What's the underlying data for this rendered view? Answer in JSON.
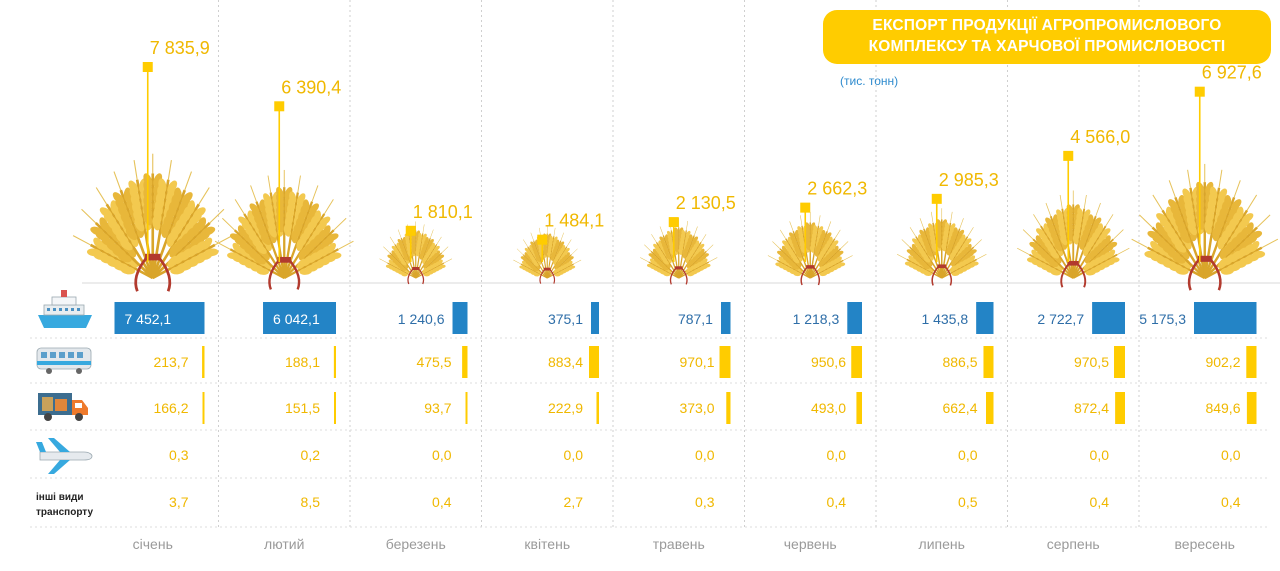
{
  "title": "ЕКСПОРТ ПРОДУКЦІЇ АГРОПРОМИСЛОВОГО КОМПЛЕКСУ ТА ХАРЧОВОЇ ПРОМИСЛОВОСТІ",
  "unit": "(тис. тонн)",
  "colors": {
    "accent": "#FFCC00",
    "sea": "#2384C6",
    "text_yellow": "#F0B800",
    "text_blue": "#2E8BCE"
  },
  "chart_data": {
    "type": "bar",
    "categories": [
      "січень",
      "лютий",
      "березень",
      "квітень",
      "травень",
      "червень",
      "липень",
      "серпень",
      "вересень"
    ],
    "totals": [
      7835.9,
      6390.4,
      1810.1,
      1484.1,
      2130.5,
      2662.3,
      2985.3,
      4566.0,
      6927.6
    ],
    "totals_labels": [
      "7 835,9",
      "6 390,4",
      "1 810,1",
      "1 484,1",
      "2 130,5",
      "2 662,3",
      "2 985,3",
      "4 566,0",
      "6 927,6"
    ],
    "series": [
      {
        "icon": "ship-icon",
        "values": [
          7452.1,
          6042.1,
          1240.6,
          375.1,
          787.1,
          1218.3,
          1435.8,
          2722.7,
          5175.3
        ],
        "labels": [
          "7 452,1",
          "6 042,1",
          "1 240,6",
          "375,1",
          "787,1",
          "1 218,3",
          "1 435,8",
          "2 722,7",
          "5 175,3"
        ]
      },
      {
        "icon": "train-icon",
        "values": [
          213.7,
          188.1,
          475.5,
          883.4,
          970.1,
          950.6,
          886.5,
          970.5,
          902.2
        ],
        "labels": [
          "213,7",
          "188,1",
          "475,5",
          "883,4",
          "970,1",
          "950,6",
          "886,5",
          "970,5",
          "902,2"
        ]
      },
      {
        "icon": "truck-icon",
        "values": [
          166.2,
          151.5,
          93.7,
          222.9,
          373.0,
          493.0,
          662.4,
          872.4,
          849.6
        ],
        "labels": [
          "166,2",
          "151,5",
          "93,7",
          "222,9",
          "373,0",
          "493,0",
          "662,4",
          "872,4",
          "849,6"
        ]
      },
      {
        "icon": "airplane-icon",
        "values": [
          0.3,
          0.2,
          0.0,
          0.0,
          0.0,
          0.0,
          0.0,
          0.0,
          0.0
        ],
        "labels": [
          "0,3",
          "0,2",
          "0,0",
          "0,0",
          "0,0",
          "0,0",
          "0,0",
          "0,0",
          "0,0"
        ]
      },
      {
        "name": "інші види транспорту",
        "values": [
          3.7,
          8.5,
          0.4,
          2.7,
          0.3,
          0.4,
          0.5,
          0.4,
          0.4
        ],
        "labels": [
          "3,7",
          "8,5",
          "0,4",
          "2,7",
          "0,3",
          "0,4",
          "0,5",
          "0,4",
          "0,4"
        ]
      }
    ]
  }
}
